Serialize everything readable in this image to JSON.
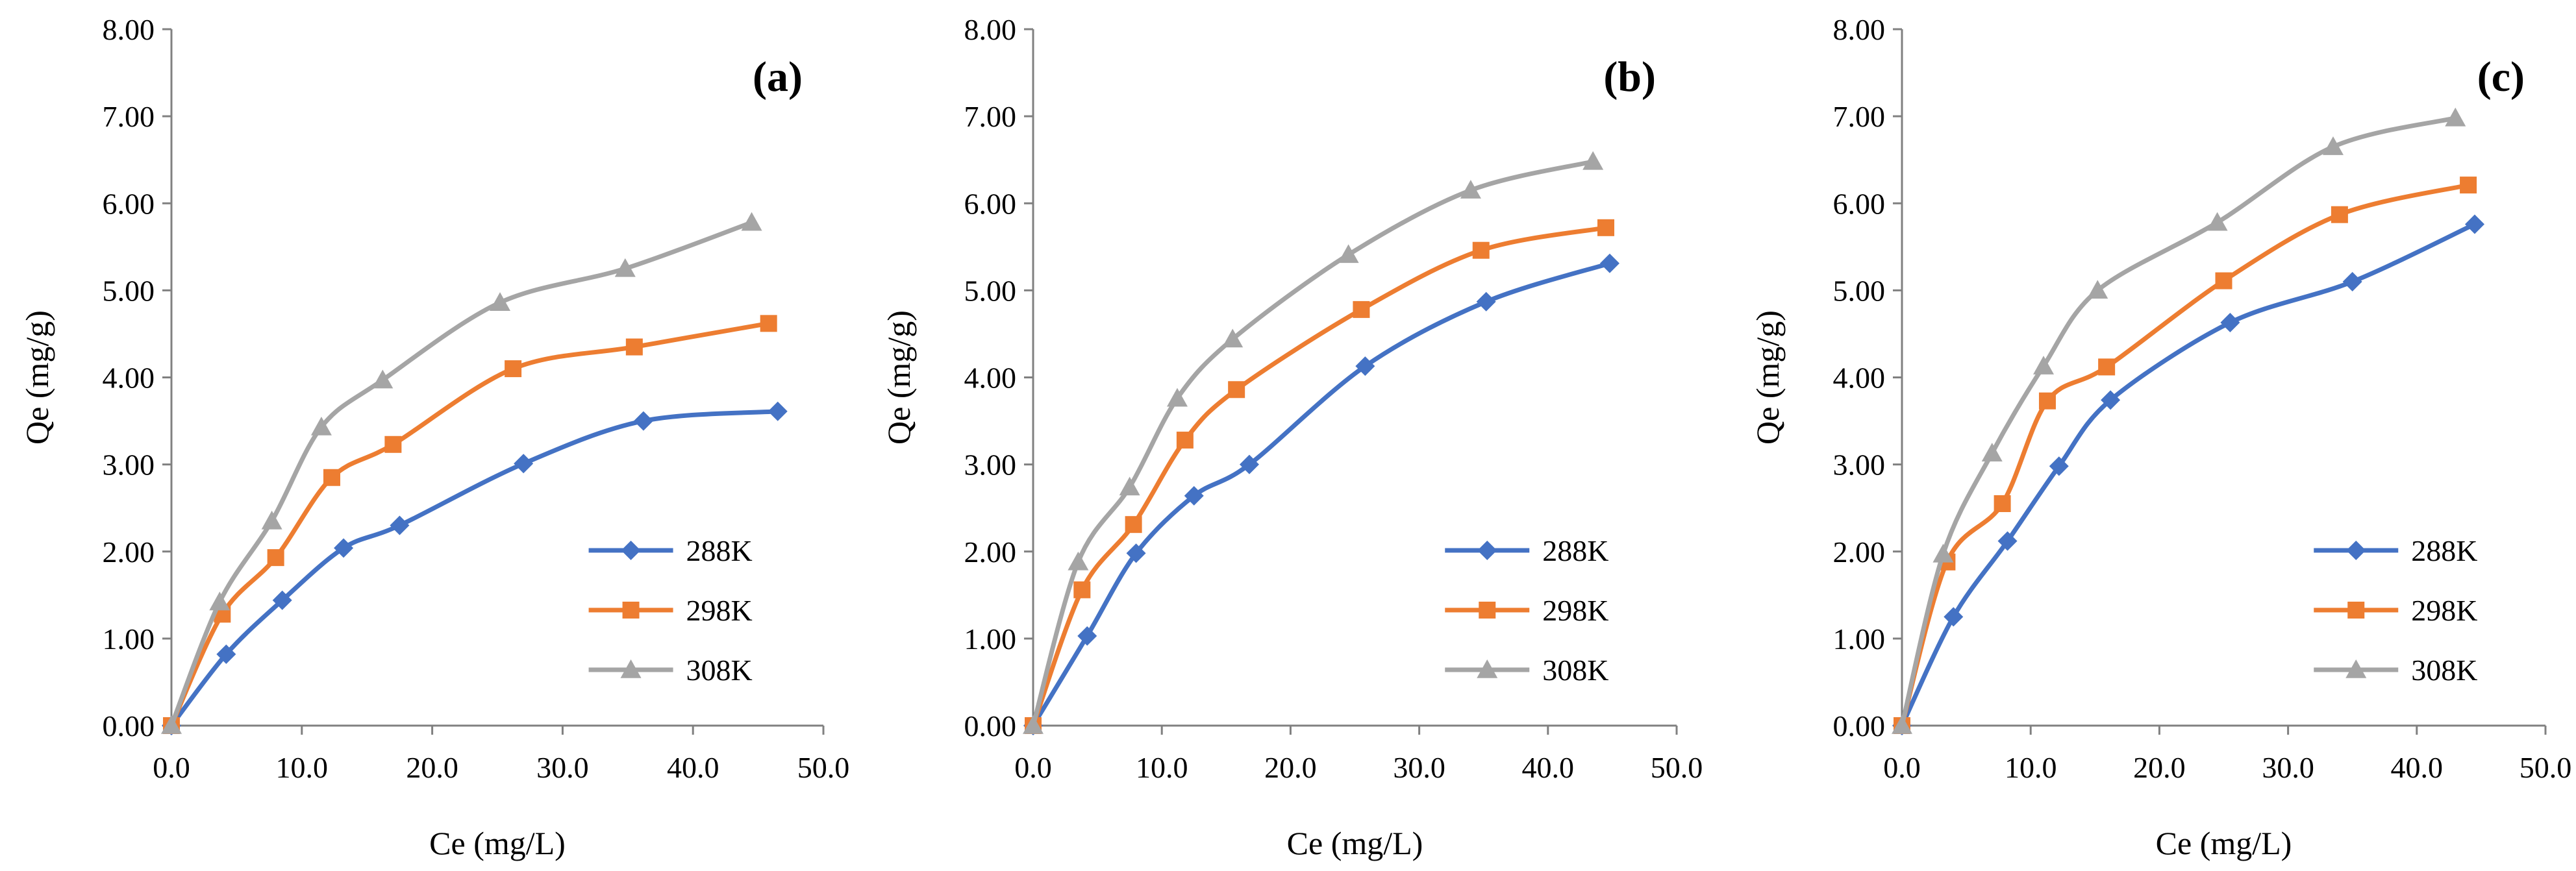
{
  "chart_data": [
    {
      "type": "line",
      "panel": "(a)",
      "xlabel": "Ce (mg/L)",
      "ylabel": "Qe (mg/g)",
      "xlim": [
        0,
        50
      ],
      "ylim": [
        0,
        8
      ],
      "xticks": [
        "0.0",
        "10.0",
        "20.0",
        "30.0",
        "40.0",
        "50.0"
      ],
      "yticks": [
        "0.00",
        "1.00",
        "2.00",
        "3.00",
        "4.00",
        "5.00",
        "6.00",
        "7.00",
        "8.00"
      ],
      "legend_position": "bottom-right",
      "grid": false,
      "series": [
        {
          "name": "288K",
          "color": "#4472C4",
          "marker": "diamond",
          "x": [
            0,
            4.2,
            8.5,
            13.2,
            17.5,
            27.0,
            36.2,
            46.5
          ],
          "y": [
            0,
            0.82,
            1.44,
            2.04,
            2.3,
            3.01,
            3.5,
            3.61
          ]
        },
        {
          "name": "298K",
          "color": "#ED7D31",
          "marker": "square",
          "x": [
            0,
            3.9,
            8.0,
            12.3,
            17.0,
            26.2,
            35.5,
            45.8
          ],
          "y": [
            0,
            1.28,
            1.93,
            2.85,
            3.23,
            4.1,
            4.35,
            4.62
          ]
        },
        {
          "name": "308K",
          "color": "#A5A5A5",
          "marker": "triangle",
          "x": [
            0,
            3.7,
            7.7,
            11.5,
            16.2,
            25.2,
            34.8,
            44.5
          ],
          "y": [
            0,
            1.42,
            2.35,
            3.43,
            3.97,
            4.86,
            5.25,
            5.78
          ]
        }
      ]
    },
    {
      "type": "line",
      "panel": "(b)",
      "xlabel": "Ce (mg/L)",
      "ylabel": "Qe (mg/g)",
      "xlim": [
        0,
        50
      ],
      "ylim": [
        0,
        8
      ],
      "xticks": [
        "0.0",
        "10.0",
        "20.0",
        "30.0",
        "40.0",
        "50.0"
      ],
      "yticks": [
        "0.00",
        "1.00",
        "2.00",
        "3.00",
        "4.00",
        "5.00",
        "6.00",
        "7.00",
        "8.00"
      ],
      "legend_position": "bottom-right",
      "grid": false,
      "series": [
        {
          "name": "288K",
          "color": "#4472C4",
          "marker": "diamond",
          "x": [
            0,
            4.2,
            8.0,
            12.5,
            16.8,
            25.8,
            35.2,
            44.8
          ],
          "y": [
            0,
            1.03,
            1.98,
            2.64,
            3.0,
            4.13,
            4.87,
            5.31
          ]
        },
        {
          "name": "298K",
          "color": "#ED7D31",
          "marker": "square",
          "x": [
            0,
            3.8,
            7.8,
            11.8,
            15.8,
            25.5,
            34.8,
            44.5
          ],
          "y": [
            0,
            1.56,
            2.31,
            3.28,
            3.86,
            4.78,
            5.46,
            5.72
          ]
        },
        {
          "name": "308K",
          "color": "#A5A5A5",
          "marker": "triangle",
          "x": [
            0,
            3.5,
            7.5,
            11.2,
            15.5,
            24.5,
            34.0,
            43.5
          ],
          "y": [
            0,
            1.88,
            2.74,
            3.76,
            4.44,
            5.41,
            6.15,
            6.48
          ]
        }
      ]
    },
    {
      "type": "line",
      "panel": "(c)",
      "xlabel": "Ce (mg/L)",
      "ylabel": "Qe (mg/g)",
      "xlim": [
        0,
        50
      ],
      "ylim": [
        0,
        8
      ],
      "xticks": [
        "0.0",
        "10.0",
        "20.0",
        "30.0",
        "40.0",
        "50.0"
      ],
      "yticks": [
        "0.00",
        "1.00",
        "2.00",
        "3.00",
        "4.00",
        "5.00",
        "6.00",
        "7.00",
        "8.00"
      ],
      "legend_position": "bottom-right",
      "grid": false,
      "series": [
        {
          "name": "288K",
          "color": "#4472C4",
          "marker": "diamond",
          "x": [
            0,
            4.0,
            8.2,
            12.2,
            16.2,
            25.5,
            35.0,
            44.5
          ],
          "y": [
            0,
            1.25,
            2.12,
            2.98,
            3.74,
            4.63,
            5.1,
            5.76
          ]
        },
        {
          "name": "298K",
          "color": "#ED7D31",
          "marker": "square",
          "x": [
            0,
            3.5,
            7.8,
            11.3,
            15.9,
            25.0,
            34.0,
            44.0
          ],
          "y": [
            0,
            1.88,
            2.55,
            3.73,
            4.12,
            5.11,
            5.87,
            6.21
          ]
        },
        {
          "name": "308K",
          "color": "#A5A5A5",
          "marker": "triangle",
          "x": [
            0,
            3.2,
            7.0,
            11.0,
            15.2,
            24.5,
            33.5,
            43.0
          ],
          "y": [
            0,
            1.97,
            3.13,
            4.13,
            5.0,
            5.78,
            6.65,
            6.98
          ]
        }
      ]
    }
  ]
}
